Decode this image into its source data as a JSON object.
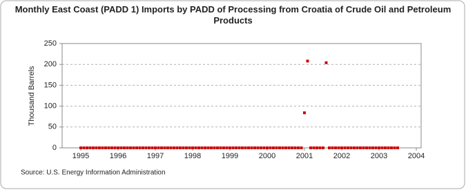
{
  "chart_data": {
    "type": "scatter",
    "title": "Monthly East Coast (PADD 1) Imports by PADD of Processing from Croatia of Crude Oil and Petroleum Products",
    "y_label": "Thousand Barrels",
    "source": "Source: U.S. Energy Information Administration",
    "categories": [
      "1995",
      null,
      null,
      null,
      null,
      null,
      null,
      null,
      null,
      null,
      null,
      null,
      "1996",
      null,
      null,
      null,
      null,
      null,
      null,
      null,
      null,
      null,
      null,
      null,
      "1997",
      null,
      null,
      null,
      null,
      null,
      null,
      null,
      null,
      null,
      null,
      null,
      "1998",
      null,
      null,
      null,
      null,
      null,
      null,
      null,
      null,
      null,
      null,
      null,
      "1999",
      null,
      null,
      null,
      null,
      null,
      null,
      null,
      null,
      null,
      null,
      null,
      "2000",
      null,
      null,
      null,
      null,
      null,
      null,
      null,
      null,
      null,
      null,
      null,
      "2001",
      null,
      null,
      null,
      null,
      null,
      null,
      null,
      null,
      null,
      null,
      null,
      "2002",
      null,
      null,
      null,
      null,
      null,
      null,
      null,
      null,
      null,
      null,
      null,
      "2003",
      null,
      null,
      null,
      null,
      null,
      null,
      null,
      null,
      null,
      null,
      null,
      "2004"
    ],
    "values": [
      0,
      0,
      0,
      0,
      0,
      0,
      0,
      0,
      0,
      0,
      0,
      0,
      0,
      0,
      0,
      0,
      0,
      0,
      0,
      0,
      0,
      0,
      0,
      0,
      0,
      0,
      0,
      0,
      0,
      0,
      0,
      0,
      0,
      0,
      0,
      0,
      0,
      0,
      0,
      0,
      0,
      0,
      0,
      0,
      0,
      0,
      0,
      0,
      0,
      0,
      0,
      0,
      0,
      0,
      0,
      0,
      0,
      0,
      0,
      0,
      0,
      0,
      0,
      0,
      0,
      0,
      0,
      0,
      0,
      0,
      0,
      0,
      84,
      208,
      0,
      0,
      0,
      0,
      0,
      204,
      0,
      0,
      0,
      0,
      0,
      0,
      0,
      0,
      0,
      0,
      0,
      0,
      0,
      0,
      0,
      0,
      0,
      0,
      0,
      0,
      0,
      0,
      0,
      null,
      null,
      null,
      null,
      null,
      null
    ],
    "color": "#cc0000",
    "ylim": [
      0,
      250
    ],
    "yticks": [
      0,
      50,
      100,
      150,
      200,
      250
    ],
    "grid": true
  }
}
